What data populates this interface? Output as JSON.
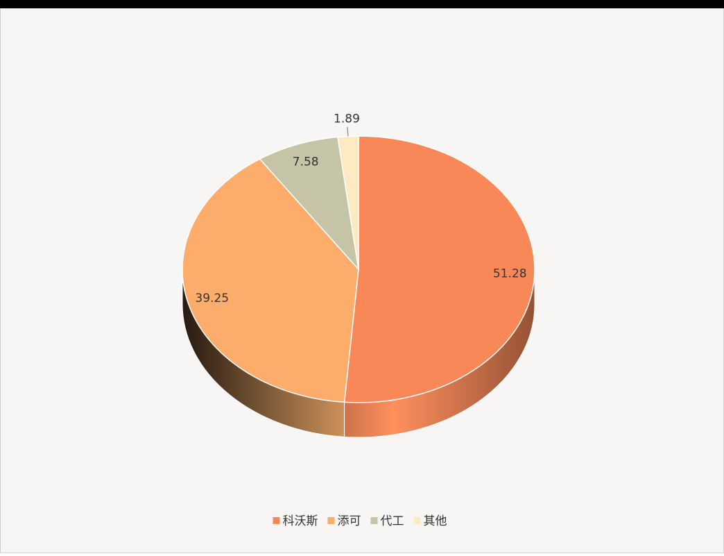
{
  "chart_data": {
    "type": "pie",
    "categories": [
      "科沃斯",
      "添可",
      "代工",
      "其他"
    ],
    "values": [
      51.28,
      39.25,
      7.58,
      1.89
    ],
    "colors": [
      "#f98859",
      "#fdad6b",
      "#c5c4a6",
      "#fde9c2"
    ]
  }
}
